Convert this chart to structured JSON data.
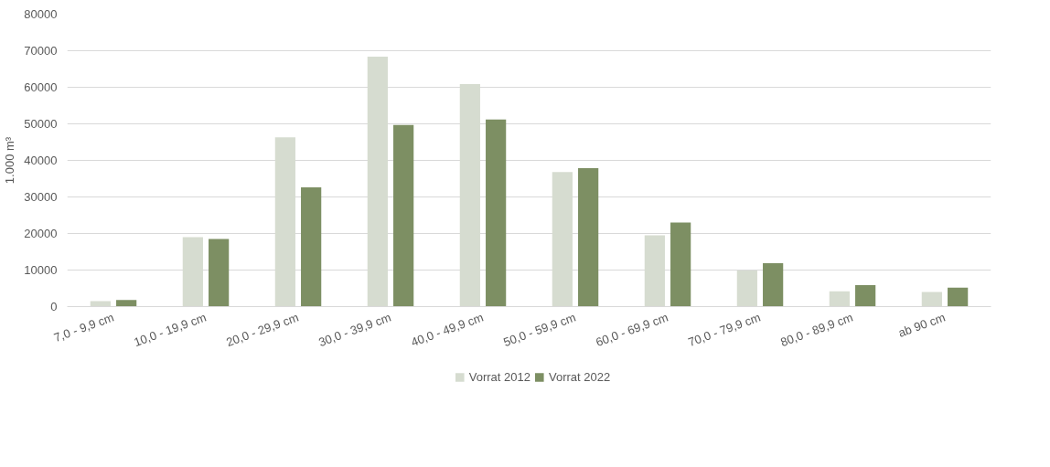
{
  "chart_data": {
    "type": "bar",
    "ylabel": "1.000 m³",
    "categories": [
      "7,0 - 9,9 cm",
      "10,0 - 19,9 cm",
      "20,0 - 29,9 cm",
      "30,0 - 39,9 cm",
      "40,0 - 49,9 cm",
      "50,0 - 59,9 cm",
      "60,0 - 69,9 cm",
      "70,0 - 79,9 cm",
      "80,0 - 89,9 cm",
      "ab 90 cm"
    ],
    "series": [
      {
        "name": "Vorrat 2012",
        "color": "#d6dcd0",
        "values": [
          1500,
          19000,
          46300,
          68400,
          60900,
          36800,
          19500,
          9900,
          4200,
          4000
        ]
      },
      {
        "name": "Vorrat 2022",
        "color": "#7d8f63",
        "values": [
          1800,
          18500,
          32600,
          49700,
          51200,
          37900,
          23000,
          11900,
          5900,
          5200
        ]
      }
    ],
    "ylim": [
      0,
      80000
    ],
    "yticks": [
      0,
      10000,
      20000,
      30000,
      40000,
      50000,
      60000,
      70000,
      80000
    ],
    "grid": "y",
    "legend": "bottom"
  }
}
